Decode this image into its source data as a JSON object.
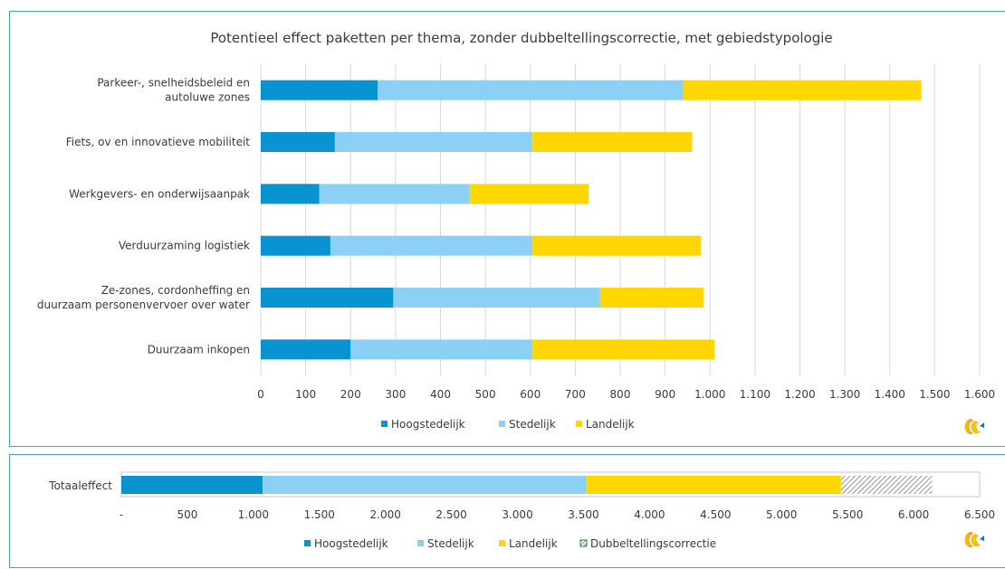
{
  "chart_data": [
    {
      "type": "bar",
      "orientation": "horizontal",
      "stacked": true,
      "title": "Potentieel  effect  paketten  per thema,  zonder  dubbeltellingscorrectie,  met gebiedstypologie",
      "categories": [
        [
          "Parkeer-, snelheidsbeleid en",
          "autoluwe zones"
        ],
        [
          "Fiets, ov en innovatieve mobiliteit"
        ],
        [
          "Werkgevers- en onderwijsaanpak"
        ],
        [
          "Verduurzaming logistiek"
        ],
        [
          "Ze-zones, cordonheffing en",
          "duurzaam personenvervoer over water"
        ],
        [
          "Duurzaam inkopen"
        ]
      ],
      "series": [
        {
          "name": "Hoogstedelijk",
          "color": "#0a93d1",
          "values": [
            260,
            165,
            130,
            155,
            295,
            200
          ]
        },
        {
          "name": "Stedelijk",
          "color": "#8dd0f5",
          "values": [
            680,
            440,
            335,
            450,
            460,
            405
          ]
        },
        {
          "name": "Landelijk",
          "color": "#ffd700",
          "values": [
            530,
            355,
            265,
            375,
            230,
            405
          ]
        }
      ],
      "xlim": [
        0,
        1600
      ],
      "xticks": [
        "0",
        "100",
        "200",
        "300",
        "400",
        "500",
        "600",
        "700",
        "800",
        "900",
        "1.000",
        "1.100",
        "1.200",
        "1.300",
        "1.400",
        "1.500",
        "1.600"
      ],
      "grid": true,
      "legend": "bottom-center"
    },
    {
      "type": "bar",
      "orientation": "horizontal",
      "stacked": true,
      "categories": [
        "Totaaleffect"
      ],
      "series": [
        {
          "name": "Hoogstedelijk",
          "color": "#0a93d1",
          "values": [
            1070
          ]
        },
        {
          "name": "Stedelijk",
          "color": "#8dd0f5",
          "values": [
            2450
          ]
        },
        {
          "name": "Landelijk",
          "color": "#ffd700",
          "values": [
            1930
          ]
        },
        {
          "name": "Dubbeltellingscorrectie",
          "color": "#2e7d32",
          "pattern": "hatched",
          "values": [
            690
          ]
        }
      ],
      "xlim": [
        0,
        6500
      ],
      "xticks": [
        "-",
        "500",
        "1.000",
        "1.500",
        "2.000",
        "2.500",
        "3.000",
        "3.500",
        "4.000",
        "4.500",
        "5.000",
        "5.500",
        "6.000",
        "6.500"
      ],
      "grid": false,
      "legend": "bottom-center"
    }
  ]
}
